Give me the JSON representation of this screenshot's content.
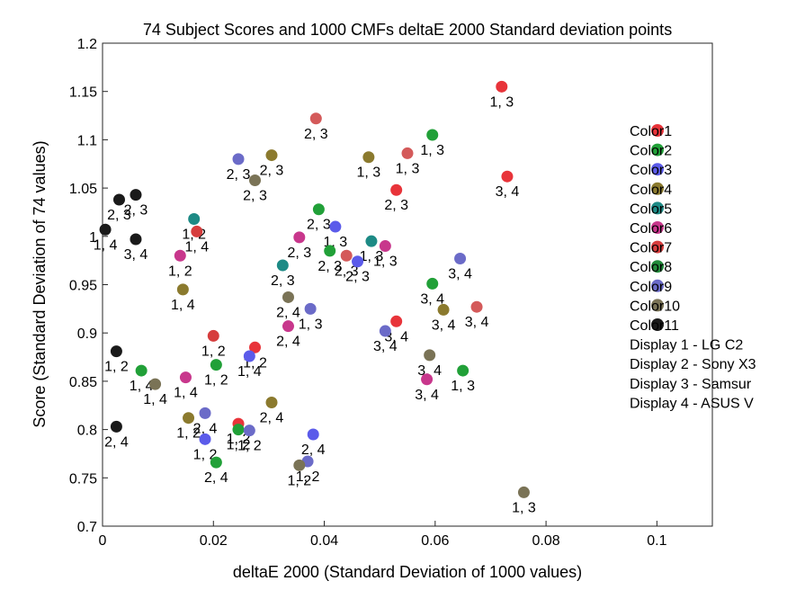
{
  "chart_data": {
    "type": "scatter",
    "title": "74 Subject Scores and 1000 CMFs deltaE 2000 Standard deviation points",
    "xlabel": "deltaE 2000 (Standard Deviation of 1000 values)",
    "ylabel": "Score (Standard Deviation of 74 values)",
    "xlim": [
      0,
      0.11
    ],
    "ylim": [
      0.7,
      1.2
    ],
    "xticks": [
      "0",
      "0.02",
      "0.04",
      "0.06",
      "0.08",
      "0.1"
    ],
    "yticks": [
      "0.7",
      "0.75",
      "0.8",
      "0.85",
      "0.9",
      "0.95",
      "1",
      "1.05",
      "1.1",
      "1.15",
      "1.2"
    ],
    "grid": false,
    "legend_position": "right",
    "legend_entries": [
      {
        "label": "Color1",
        "color": "#E8343A"
      },
      {
        "label": "Color2",
        "color": "#21A038"
      },
      {
        "label": "Color3",
        "color": "#5B5BEA"
      },
      {
        "label": "Color4",
        "color": "#8B7A2E"
      },
      {
        "label": "Color5",
        "color": "#1D8A85"
      },
      {
        "label": "Color6",
        "color": "#C8378C"
      },
      {
        "label": "Color7",
        "color": "#D63D3D"
      },
      {
        "label": "Color8",
        "color": "#218A3A"
      },
      {
        "label": "Color9",
        "color": "#6B6BC8"
      },
      {
        "label": "Color10",
        "color": "#7A7356"
      },
      {
        "label": "Color11",
        "color": "#1A1A1A"
      }
    ],
    "display_notes": [
      "Display 1 - LG C2",
      "Display 2 - Sony X3",
      "Display 3 - Samsur",
      "Display 4 - ASUS V"
    ],
    "points": [
      {
        "x": 0.072,
        "y": 1.155,
        "label": "1, 3",
        "color": "#E8343A"
      },
      {
        "x": 0.0385,
        "y": 1.122,
        "label": "2, 3",
        "color": "#D45A5A"
      },
      {
        "x": 0.0595,
        "y": 1.105,
        "label": "1, 3",
        "color": "#21A038"
      },
      {
        "x": 0.055,
        "y": 1.086,
        "label": "1, 3",
        "color": "#D45A5A"
      },
      {
        "x": 0.048,
        "y": 1.082,
        "label": "1, 3",
        "color": "#8B7A2E"
      },
      {
        "x": 0.0245,
        "y": 1.08,
        "label": "2, 3",
        "color": "#6B6BC8"
      },
      {
        "x": 0.0305,
        "y": 1.084,
        "label": "2, 3",
        "color": "#8B7A2E"
      },
      {
        "x": 0.073,
        "y": 1.062,
        "label": "3, 4",
        "color": "#E8343A"
      },
      {
        "x": 0.0275,
        "y": 1.058,
        "label": "2, 3",
        "color": "#7A7356"
      },
      {
        "x": 0.053,
        "y": 1.048,
        "label": "2, 3",
        "color": "#E8343A"
      },
      {
        "x": 0.003,
        "y": 1.038,
        "label": "2, 3",
        "color": "#1A1A1A"
      },
      {
        "x": 0.006,
        "y": 1.043,
        "label": "2, 3",
        "color": "#1A1A1A"
      },
      {
        "x": 0.039,
        "y": 1.028,
        "label": "2, 3",
        "color": "#21A038"
      },
      {
        "x": 0.0165,
        "y": 1.018,
        "label": "1, 2",
        "color": "#1D8A85"
      },
      {
        "x": 0.042,
        "y": 1.01,
        "label": "1, 3",
        "color": "#5B5BEA"
      },
      {
        "x": 0.017,
        "y": 1.005,
        "label": "1, 4",
        "color": "#D63D3D"
      },
      {
        "x": 0.0005,
        "y": 1.007,
        "label": "1, 4",
        "color": "#1A1A1A"
      },
      {
        "x": 0.006,
        "y": 0.997,
        "label": "3, 4",
        "color": "#1A1A1A"
      },
      {
        "x": 0.0355,
        "y": 0.999,
        "label": "2, 3",
        "color": "#C8378C"
      },
      {
        "x": 0.0485,
        "y": 0.995,
        "label": "1, 3",
        "color": "#1D8A85"
      },
      {
        "x": 0.051,
        "y": 0.99,
        "label": "1, 3",
        "color": "#C8378C"
      },
      {
        "x": 0.041,
        "y": 0.985,
        "label": "2, 3",
        "color": "#21A038"
      },
      {
        "x": 0.044,
        "y": 0.98,
        "label": "2, 3",
        "color": "#D45A5A"
      },
      {
        "x": 0.046,
        "y": 0.974,
        "label": "2, 3",
        "color": "#5B5BEA"
      },
      {
        "x": 0.014,
        "y": 0.98,
        "label": "1, 2",
        "color": "#C8378C"
      },
      {
        "x": 0.0645,
        "y": 0.977,
        "label": "3, 4",
        "color": "#6B6BC8"
      },
      {
        "x": 0.0325,
        "y": 0.97,
        "label": "2, 3",
        "color": "#1D8A85"
      },
      {
        "x": 0.0595,
        "y": 0.951,
        "label": "3, 4",
        "color": "#21A038"
      },
      {
        "x": 0.0145,
        "y": 0.945,
        "label": "1, 4",
        "color": "#8B7A2E"
      },
      {
        "x": 0.0335,
        "y": 0.937,
        "label": "2, 4",
        "color": "#7A7356"
      },
      {
        "x": 0.0375,
        "y": 0.925,
        "label": "1, 3",
        "color": "#6B6BC8"
      },
      {
        "x": 0.0615,
        "y": 0.924,
        "label": "3, 4",
        "color": "#8B7A2E"
      },
      {
        "x": 0.0675,
        "y": 0.927,
        "label": "3, 4",
        "color": "#D45A5A"
      },
      {
        "x": 0.053,
        "y": 0.912,
        "label": "3, 4",
        "color": "#E8343A"
      },
      {
        "x": 0.0335,
        "y": 0.907,
        "label": "2, 4",
        "color": "#C8378C"
      },
      {
        "x": 0.051,
        "y": 0.902,
        "label": "3, 4",
        "color": "#6B6BC8"
      },
      {
        "x": 0.02,
        "y": 0.897,
        "label": "1, 2",
        "color": "#D63D3D"
      },
      {
        "x": 0.0275,
        "y": 0.885,
        "label": "1, 2",
        "color": "#E8343A"
      },
      {
        "x": 0.0265,
        "y": 0.876,
        "label": "1, 4",
        "color": "#5B5BEA"
      },
      {
        "x": 0.0025,
        "y": 0.881,
        "label": "1, 2",
        "color": "#1A1A1A"
      },
      {
        "x": 0.059,
        "y": 0.877,
        "label": "3, 4",
        "color": "#7A7356"
      },
      {
        "x": 0.0205,
        "y": 0.867,
        "label": "1, 2",
        "color": "#21A038"
      },
      {
        "x": 0.007,
        "y": 0.861,
        "label": "1, 4",
        "color": "#21A038"
      },
      {
        "x": 0.065,
        "y": 0.861,
        "label": "1, 3",
        "color": "#21A038"
      },
      {
        "x": 0.015,
        "y": 0.854,
        "label": "1, 4",
        "color": "#C8378C"
      },
      {
        "x": 0.0585,
        "y": 0.852,
        "label": "3, 4",
        "color": "#C8378C"
      },
      {
        "x": 0.0095,
        "y": 0.847,
        "label": "1, 4",
        "color": "#7A7356"
      },
      {
        "x": 0.0305,
        "y": 0.828,
        "label": "2, 4",
        "color": "#8B7A2E"
      },
      {
        "x": 0.0185,
        "y": 0.817,
        "label": "2, 4",
        "color": "#6B6BC8"
      },
      {
        "x": 0.0155,
        "y": 0.812,
        "label": "1, 2",
        "color": "#8B7A2E"
      },
      {
        "x": 0.0245,
        "y": 0.806,
        "label": "1, 2",
        "color": "#E8343A"
      },
      {
        "x": 0.0025,
        "y": 0.803,
        "label": "2, 4",
        "color": "#1A1A1A"
      },
      {
        "x": 0.0245,
        "y": 0.8,
        "label": "1, 2",
        "color": "#21A038"
      },
      {
        "x": 0.0265,
        "y": 0.799,
        "label": "1, 2",
        "color": "#6B6BC8"
      },
      {
        "x": 0.038,
        "y": 0.795,
        "label": "2, 4",
        "color": "#5B5BEA"
      },
      {
        "x": 0.0185,
        "y": 0.79,
        "label": "1, 2",
        "color": "#5B5BEA"
      },
      {
        "x": 0.0205,
        "y": 0.766,
        "label": "2, 4",
        "color": "#21A038"
      },
      {
        "x": 0.037,
        "y": 0.767,
        "label": "1, 2",
        "color": "#6B6BC8"
      },
      {
        "x": 0.0355,
        "y": 0.763,
        "label": "1, 2",
        "color": "#7A7356"
      },
      {
        "x": 0.076,
        "y": 0.735,
        "label": "1, 3",
        "color": "#7A7356"
      }
    ]
  }
}
